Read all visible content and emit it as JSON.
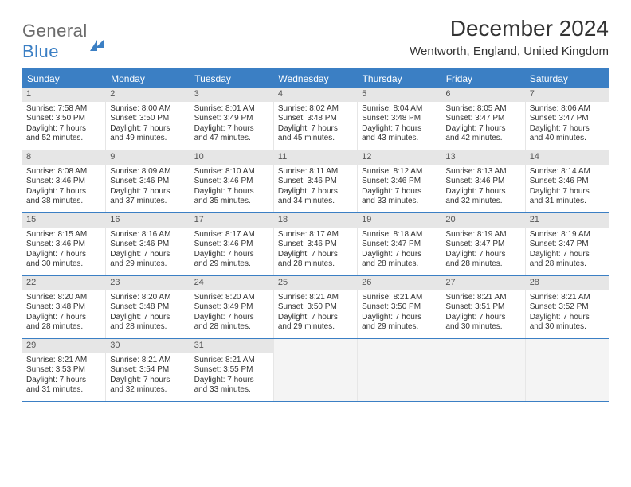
{
  "logo": {
    "part1": "General",
    "part2": "Blue"
  },
  "title": "December 2024",
  "subtitle": "Wentworth, England, United Kingdom",
  "colors": {
    "accent": "#3b7fc4",
    "header_bg": "#3b7fc4",
    "header_text": "#ffffff",
    "daynum_bg": "#e6e6e6",
    "border": "#3b7fc4",
    "cell_border": "#e6e6e6",
    "empty_bg": "#f4f4f4",
    "text": "#333333"
  },
  "dow": [
    "Sunday",
    "Monday",
    "Tuesday",
    "Wednesday",
    "Thursday",
    "Friday",
    "Saturday"
  ],
  "weeks": [
    [
      {
        "n": "1",
        "sr": "Sunrise: 7:58 AM",
        "ss": "Sunset: 3:50 PM",
        "dl": "Daylight: 7 hours and 52 minutes."
      },
      {
        "n": "2",
        "sr": "Sunrise: 8:00 AM",
        "ss": "Sunset: 3:50 PM",
        "dl": "Daylight: 7 hours and 49 minutes."
      },
      {
        "n": "3",
        "sr": "Sunrise: 8:01 AM",
        "ss": "Sunset: 3:49 PM",
        "dl": "Daylight: 7 hours and 47 minutes."
      },
      {
        "n": "4",
        "sr": "Sunrise: 8:02 AM",
        "ss": "Sunset: 3:48 PM",
        "dl": "Daylight: 7 hours and 45 minutes."
      },
      {
        "n": "5",
        "sr": "Sunrise: 8:04 AM",
        "ss": "Sunset: 3:48 PM",
        "dl": "Daylight: 7 hours and 43 minutes."
      },
      {
        "n": "6",
        "sr": "Sunrise: 8:05 AM",
        "ss": "Sunset: 3:47 PM",
        "dl": "Daylight: 7 hours and 42 minutes."
      },
      {
        "n": "7",
        "sr": "Sunrise: 8:06 AM",
        "ss": "Sunset: 3:47 PM",
        "dl": "Daylight: 7 hours and 40 minutes."
      }
    ],
    [
      {
        "n": "8",
        "sr": "Sunrise: 8:08 AM",
        "ss": "Sunset: 3:46 PM",
        "dl": "Daylight: 7 hours and 38 minutes."
      },
      {
        "n": "9",
        "sr": "Sunrise: 8:09 AM",
        "ss": "Sunset: 3:46 PM",
        "dl": "Daylight: 7 hours and 37 minutes."
      },
      {
        "n": "10",
        "sr": "Sunrise: 8:10 AM",
        "ss": "Sunset: 3:46 PM",
        "dl": "Daylight: 7 hours and 35 minutes."
      },
      {
        "n": "11",
        "sr": "Sunrise: 8:11 AM",
        "ss": "Sunset: 3:46 PM",
        "dl": "Daylight: 7 hours and 34 minutes."
      },
      {
        "n": "12",
        "sr": "Sunrise: 8:12 AM",
        "ss": "Sunset: 3:46 PM",
        "dl": "Daylight: 7 hours and 33 minutes."
      },
      {
        "n": "13",
        "sr": "Sunrise: 8:13 AM",
        "ss": "Sunset: 3:46 PM",
        "dl": "Daylight: 7 hours and 32 minutes."
      },
      {
        "n": "14",
        "sr": "Sunrise: 8:14 AM",
        "ss": "Sunset: 3:46 PM",
        "dl": "Daylight: 7 hours and 31 minutes."
      }
    ],
    [
      {
        "n": "15",
        "sr": "Sunrise: 8:15 AM",
        "ss": "Sunset: 3:46 PM",
        "dl": "Daylight: 7 hours and 30 minutes."
      },
      {
        "n": "16",
        "sr": "Sunrise: 8:16 AM",
        "ss": "Sunset: 3:46 PM",
        "dl": "Daylight: 7 hours and 29 minutes."
      },
      {
        "n": "17",
        "sr": "Sunrise: 8:17 AM",
        "ss": "Sunset: 3:46 PM",
        "dl": "Daylight: 7 hours and 29 minutes."
      },
      {
        "n": "18",
        "sr": "Sunrise: 8:17 AM",
        "ss": "Sunset: 3:46 PM",
        "dl": "Daylight: 7 hours and 28 minutes."
      },
      {
        "n": "19",
        "sr": "Sunrise: 8:18 AM",
        "ss": "Sunset: 3:47 PM",
        "dl": "Daylight: 7 hours and 28 minutes."
      },
      {
        "n": "20",
        "sr": "Sunrise: 8:19 AM",
        "ss": "Sunset: 3:47 PM",
        "dl": "Daylight: 7 hours and 28 minutes."
      },
      {
        "n": "21",
        "sr": "Sunrise: 8:19 AM",
        "ss": "Sunset: 3:47 PM",
        "dl": "Daylight: 7 hours and 28 minutes."
      }
    ],
    [
      {
        "n": "22",
        "sr": "Sunrise: 8:20 AM",
        "ss": "Sunset: 3:48 PM",
        "dl": "Daylight: 7 hours and 28 minutes."
      },
      {
        "n": "23",
        "sr": "Sunrise: 8:20 AM",
        "ss": "Sunset: 3:48 PM",
        "dl": "Daylight: 7 hours and 28 minutes."
      },
      {
        "n": "24",
        "sr": "Sunrise: 8:20 AM",
        "ss": "Sunset: 3:49 PM",
        "dl": "Daylight: 7 hours and 28 minutes."
      },
      {
        "n": "25",
        "sr": "Sunrise: 8:21 AM",
        "ss": "Sunset: 3:50 PM",
        "dl": "Daylight: 7 hours and 29 minutes."
      },
      {
        "n": "26",
        "sr": "Sunrise: 8:21 AM",
        "ss": "Sunset: 3:50 PM",
        "dl": "Daylight: 7 hours and 29 minutes."
      },
      {
        "n": "27",
        "sr": "Sunrise: 8:21 AM",
        "ss": "Sunset: 3:51 PM",
        "dl": "Daylight: 7 hours and 30 minutes."
      },
      {
        "n": "28",
        "sr": "Sunrise: 8:21 AM",
        "ss": "Sunset: 3:52 PM",
        "dl": "Daylight: 7 hours and 30 minutes."
      }
    ],
    [
      {
        "n": "29",
        "sr": "Sunrise: 8:21 AM",
        "ss": "Sunset: 3:53 PM",
        "dl": "Daylight: 7 hours and 31 minutes."
      },
      {
        "n": "30",
        "sr": "Sunrise: 8:21 AM",
        "ss": "Sunset: 3:54 PM",
        "dl": "Daylight: 7 hours and 32 minutes."
      },
      {
        "n": "31",
        "sr": "Sunrise: 8:21 AM",
        "ss": "Sunset: 3:55 PM",
        "dl": "Daylight: 7 hours and 33 minutes."
      },
      {
        "empty": true
      },
      {
        "empty": true
      },
      {
        "empty": true
      },
      {
        "empty": true
      }
    ]
  ]
}
